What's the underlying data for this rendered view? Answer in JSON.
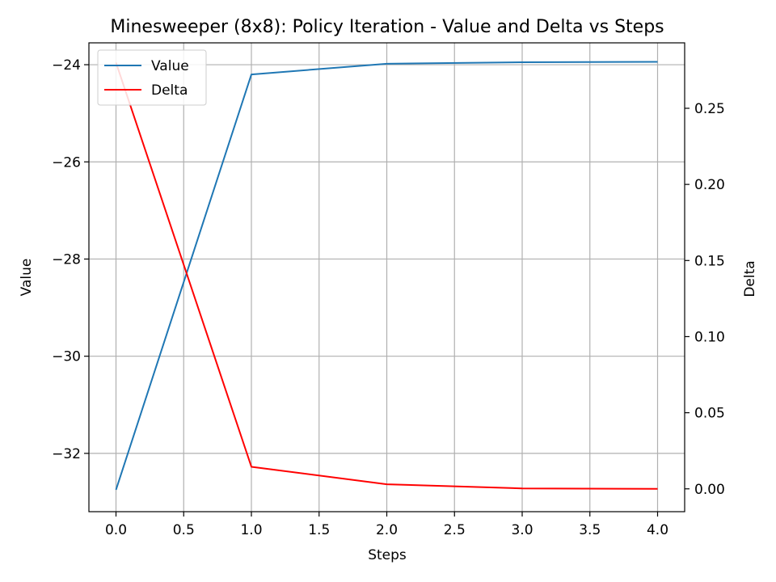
{
  "chart_data": {
    "type": "line",
    "title": "Minesweeper (8x8): Policy Iteration - Value and Delta vs Steps",
    "xlabel": "Steps",
    "ylabel_left": "Value",
    "ylabel_right": "Delta",
    "x": [
      0,
      1,
      2,
      3,
      4
    ],
    "xlim": [
      -0.2,
      4.2
    ],
    "ylim_left": [
      -33.2,
      -23.55
    ],
    "ylim_right": [
      -0.015,
      0.293
    ],
    "xticks": [
      0.0,
      0.5,
      1.0,
      1.5,
      2.0,
      2.5,
      3.0,
      3.5,
      4.0
    ],
    "xtick_labels": [
      "0.0",
      "0.5",
      "1.0",
      "1.5",
      "2.0",
      "2.5",
      "3.0",
      "3.5",
      "4.0"
    ],
    "yticks_left": [
      -32,
      -30,
      -28,
      -26,
      -24
    ],
    "ytick_labels_left": [
      "−32",
      "−30",
      "−28",
      "−26",
      "−24"
    ],
    "yticks_right": [
      0.0,
      0.05,
      0.1,
      0.15,
      0.2,
      0.25
    ],
    "ytick_labels_right": [
      "0.00",
      "0.05",
      "0.10",
      "0.15",
      "0.20",
      "0.25"
    ],
    "grid": true,
    "legend_position": "top-left",
    "series": [
      {
        "name": "Value",
        "axis": "left",
        "color": "#1f77b4",
        "values": [
          -32.75,
          -24.2,
          -23.98,
          -23.95,
          -23.94
        ]
      },
      {
        "name": "Delta",
        "axis": "right",
        "color": "#ff0000",
        "values": [
          0.28,
          0.0145,
          0.003,
          0.0003,
          0.0
        ]
      }
    ]
  }
}
